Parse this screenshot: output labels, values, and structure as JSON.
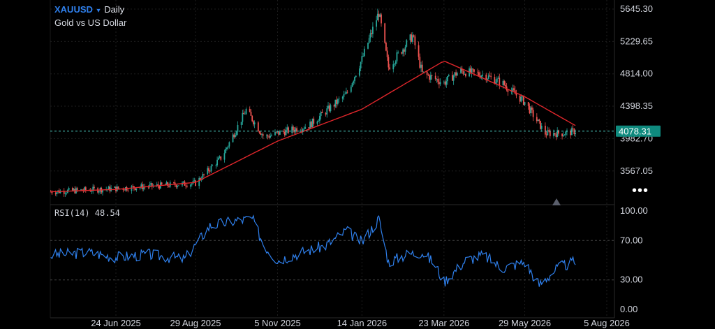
{
  "header": {
    "symbol": "XAUUSD",
    "dropdown_icon": "caret-down-icon",
    "timeframe": "Daily",
    "subtitle": "Gold vs US Dollar"
  },
  "indicator": {
    "label": "RSI(14) 48.54"
  },
  "colors": {
    "background": "#000000",
    "candle_up": "#26a69a",
    "candle_down": "#ef5350",
    "ma": "#e0262b",
    "rsi": "#2f80ed",
    "price_line": "#4fd1c5",
    "price_badge": "#0f8a7e",
    "grid": "#1e1e1e"
  },
  "chart_data": [
    {
      "type": "candlestick",
      "title": "XAUUSD Daily",
      "subtitle": "Gold vs US Dollar",
      "y_ticks": [
        "5645.30",
        "5229.65",
        "4814.00",
        "4398.35",
        "3982.70",
        "3567.05"
      ],
      "ylim": [
        3250,
        5660
      ],
      "x_ticks": [
        "24 Jun 2025",
        "29 Aug 2025",
        "5 Nov 2025",
        "14 Jan 2026",
        "23 Mar 2026",
        "29 May 2026",
        "5 Aug 2026"
      ],
      "last_price": "4078.31",
      "moving_average_series": {
        "x": [
          "24 Jun 2025",
          "29 Aug 2025",
          "5 Nov 2025",
          "14 Jan 2026",
          "23 Mar 2026",
          "29 May 2026"
        ],
        "values": [
          3330,
          3420,
          3950,
          4360,
          4980,
          4520
        ]
      },
      "price_path": {
        "dates": [
          "2025-05-01",
          "2025-06-24",
          "2025-08-29",
          "2025-09-20",
          "2025-10-10",
          "2025-10-25",
          "2025-11-05",
          "2025-12-01",
          "2026-01-01",
          "2026-01-14",
          "2026-01-28",
          "2026-02-05",
          "2026-02-25",
          "2026-03-05",
          "2026-03-23",
          "2026-04-05",
          "2026-04-25",
          "2026-05-10",
          "2026-05-29",
          "2026-06-15",
          "2026-07-01",
          "2026-07-10"
        ],
        "values": [
          3300,
          3340,
          3410,
          3750,
          4350,
          4000,
          4050,
          4150,
          4550,
          5000,
          5600,
          4900,
          5300,
          4820,
          4700,
          4850,
          4800,
          4700,
          4450,
          4050,
          4050,
          4078
        ]
      },
      "grid": true
    },
    {
      "type": "line",
      "title": "RSI(14) 48.54",
      "y_ticks": [
        "100.00",
        "70.00",
        "30.00",
        "0.00"
      ],
      "ylim": [
        0,
        100
      ],
      "levels": [
        70,
        30
      ],
      "series": [
        {
          "name": "RSI(14)",
          "x": [
            "2025-05-01",
            "2025-06-01",
            "2025-06-24",
            "2025-07-20",
            "2025-08-20",
            "2025-09-10",
            "2025-10-01",
            "2025-10-15",
            "2025-10-25",
            "2025-11-05",
            "2025-11-25",
            "2025-12-15",
            "2026-01-01",
            "2026-01-14",
            "2026-01-28",
            "2026-02-05",
            "2026-02-20",
            "2026-03-05",
            "2026-03-15",
            "2026-03-23",
            "2026-04-10",
            "2026-04-25",
            "2026-05-10",
            "2026-05-29",
            "2026-06-10",
            "2026-06-25",
            "2026-07-10"
          ],
          "values": [
            55,
            58,
            53,
            56,
            51,
            85,
            90,
            92,
            65,
            50,
            58,
            65,
            80,
            68,
            92,
            48,
            56,
            58,
            47,
            28,
            50,
            55,
            42,
            48,
            25,
            42,
            48.54
          ]
        }
      ]
    }
  ]
}
